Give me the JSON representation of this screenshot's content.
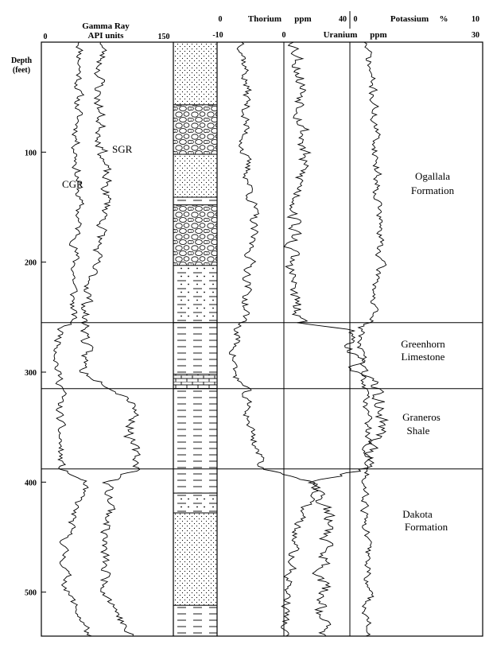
{
  "headers": {
    "gamma_ray_title": "Gamma Ray",
    "gamma_ray_units": "API units",
    "gamma_min": "0",
    "gamma_max": "150",
    "thorium_title": "Thorium",
    "thorium_units": "ppm",
    "thorium_min": "0",
    "thorium_max": "40",
    "uranium_title": "Uranium",
    "uranium_units": "ppm",
    "uranium_min": "-10",
    "uranium_max": "30",
    "uranium_mid": "0",
    "potassium_title": "Potassium",
    "potassium_units": "%",
    "potassium_min": "0",
    "potassium_max": "10"
  },
  "depth_axis": {
    "title_line1": "Depth",
    "title_line2": "(feet)",
    "range_ft": [
      0,
      540
    ],
    "ticks": [
      {
        "value": 100,
        "label": "100"
      },
      {
        "value": 200,
        "label": "200"
      },
      {
        "value": 300,
        "label": "300"
      },
      {
        "value": 400,
        "label": "400"
      },
      {
        "value": 500,
        "label": "500"
      }
    ]
  },
  "curve_labels": {
    "sgr": "SGR",
    "cgr": "CGR"
  },
  "formations": [
    {
      "id": "ogallala",
      "line1": "Ogallala",
      "line2": "Formation",
      "top_ft": 0,
      "base_ft": 255
    },
    {
      "id": "greenhorn",
      "line1": "Greenhorn",
      "line2": "Limestone",
      "top_ft": 255,
      "base_ft": 315
    },
    {
      "id": "graneros",
      "line1": "Graneros",
      "line2": "Shale",
      "top_ft": 315,
      "base_ft": 388
    },
    {
      "id": "dakota",
      "line1": "Dakota",
      "line2": "Formation",
      "top_ft": 388,
      "base_ft": 540
    }
  ],
  "lithology": [
    {
      "type": "sandstone",
      "top_ft": 0,
      "base_ft": 57
    },
    {
      "type": "conglomerate",
      "top_ft": 57,
      "base_ft": 102
    },
    {
      "type": "sandstone",
      "top_ft": 102,
      "base_ft": 141
    },
    {
      "type": "shale",
      "top_ft": 141,
      "base_ft": 148
    },
    {
      "type": "conglomerate",
      "top_ft": 148,
      "base_ft": 203
    },
    {
      "type": "silty_shale",
      "top_ft": 203,
      "base_ft": 255
    },
    {
      "type": "shale",
      "top_ft": 255,
      "base_ft": 302
    },
    {
      "type": "limestone",
      "top_ft": 302,
      "base_ft": 315
    },
    {
      "type": "shale",
      "top_ft": 315,
      "base_ft": 410
    },
    {
      "type": "silty_shale",
      "top_ft": 410,
      "base_ft": 428
    },
    {
      "type": "sandstone",
      "top_ft": 428,
      "base_ft": 512
    },
    {
      "type": "shale",
      "top_ft": 512,
      "base_ft": 540
    }
  ],
  "log_trends": {
    "cgr_api": [
      [
        0,
        45
      ],
      [
        50,
        42
      ],
      [
        100,
        40
      ],
      [
        150,
        43
      ],
      [
        200,
        38
      ],
      [
        255,
        35
      ],
      [
        260,
        22
      ],
      [
        300,
        18
      ],
      [
        315,
        25
      ],
      [
        330,
        20
      ],
      [
        388,
        22
      ],
      [
        400,
        50
      ],
      [
        420,
        40
      ],
      [
        460,
        25
      ],
      [
        500,
        30
      ],
      [
        540,
        55
      ]
    ],
    "sgr_api": [
      [
        0,
        70
      ],
      [
        50,
        65
      ],
      [
        100,
        70
      ],
      [
        150,
        75
      ],
      [
        200,
        60
      ],
      [
        255,
        48
      ],
      [
        260,
        52
      ],
      [
        300,
        48
      ],
      [
        315,
        85
      ],
      [
        330,
        110
      ],
      [
        360,
        100
      ],
      [
        388,
        112
      ],
      [
        400,
        75
      ],
      [
        420,
        80
      ],
      [
        460,
        70
      ],
      [
        500,
        75
      ],
      [
        540,
        100
      ]
    ],
    "thorium_ppm": [
      [
        0,
        8
      ],
      [
        50,
        9
      ],
      [
        100,
        8
      ],
      [
        150,
        11
      ],
      [
        200,
        10
      ],
      [
        255,
        8
      ],
      [
        260,
        6
      ],
      [
        300,
        5
      ],
      [
        315,
        8
      ],
      [
        350,
        10
      ],
      [
        388,
        14
      ],
      [
        400,
        30
      ],
      [
        440,
        24
      ],
      [
        480,
        22
      ],
      [
        540,
        20
      ]
    ],
    "uranium_ppm": [
      [
        0,
        2
      ],
      [
        50,
        3
      ],
      [
        100,
        3
      ],
      [
        150,
        2
      ],
      [
        200,
        1
      ],
      [
        255,
        2
      ],
      [
        260,
        10
      ],
      [
        300,
        11
      ],
      [
        315,
        14
      ],
      [
        350,
        15
      ],
      [
        388,
        12
      ],
      [
        400,
        5
      ],
      [
        440,
        7
      ],
      [
        480,
        6
      ],
      [
        540,
        6
      ]
    ],
    "potassium_pct": [
      [
        0,
        1.2
      ],
      [
        50,
        1.8
      ],
      [
        100,
        2
      ],
      [
        150,
        2.2
      ],
      [
        200,
        2.3
      ],
      [
        255,
        1.5
      ],
      [
        260,
        0.8
      ],
      [
        300,
        1.0
      ],
      [
        315,
        1.2
      ],
      [
        350,
        1.4
      ],
      [
        388,
        1.2
      ],
      [
        400,
        1.3
      ],
      [
        440,
        1.2
      ],
      [
        480,
        1.4
      ],
      [
        540,
        1.3
      ]
    ]
  }
}
